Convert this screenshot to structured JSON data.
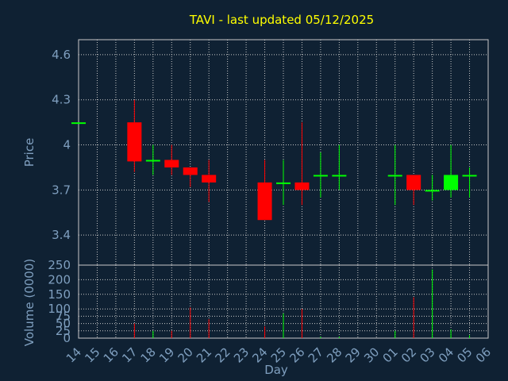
{
  "chart_data": {
    "title": "TAVI - last updated 05/12/2025",
    "type": "candlestick",
    "xlabel": "Day",
    "categories": [
      "14",
      "15",
      "16",
      "17",
      "18",
      "19",
      "20",
      "21",
      "22",
      "23",
      "24",
      "25",
      "26",
      "27",
      "28",
      "29",
      "30",
      "01",
      "02",
      "03",
      "04",
      "05",
      "06"
    ],
    "price": {
      "ylabel": "Price",
      "ylim": [
        3.2,
        4.7
      ],
      "ticks": [
        3.4,
        3.7,
        4,
        4.3,
        4.6
      ],
      "candles": [
        {
          "day": "14",
          "open": 4.15,
          "high": 4.15,
          "low": 4.15,
          "close": 4.15
        },
        {
          "day": "17",
          "open": 4.15,
          "high": 4.3,
          "low": 3.82,
          "close": 3.89
        },
        {
          "day": "18",
          "open": 3.89,
          "high": 4.0,
          "low": 3.8,
          "close": 3.9
        },
        {
          "day": "19",
          "open": 3.9,
          "high": 4.0,
          "low": 3.8,
          "close": 3.85
        },
        {
          "day": "20",
          "open": 3.85,
          "high": 3.85,
          "low": 3.72,
          "close": 3.8
        },
        {
          "day": "21",
          "open": 3.8,
          "high": 3.9,
          "low": 3.62,
          "close": 3.75
        },
        {
          "day": "24",
          "open": 3.75,
          "high": 3.9,
          "low": 3.5,
          "close": 3.5
        },
        {
          "day": "25",
          "open": 3.74,
          "high": 3.9,
          "low": 3.6,
          "close": 3.75
        },
        {
          "day": "26",
          "open": 3.75,
          "high": 4.15,
          "low": 3.6,
          "close": 3.7
        },
        {
          "day": "27",
          "open": 3.79,
          "high": 3.95,
          "low": 3.65,
          "close": 3.8
        },
        {
          "day": "28",
          "open": 3.79,
          "high": 4.0,
          "low": 3.7,
          "close": 3.8
        },
        {
          "day": "01",
          "open": 3.79,
          "high": 4.0,
          "low": 3.6,
          "close": 3.8
        },
        {
          "day": "02",
          "open": 3.8,
          "high": 3.8,
          "low": 3.6,
          "close": 3.7
        },
        {
          "day": "03",
          "open": 3.69,
          "high": 3.8,
          "low": 3.63,
          "close": 3.7
        },
        {
          "day": "04",
          "open": 3.7,
          "high": 4.0,
          "low": 3.65,
          "close": 3.8
        },
        {
          "day": "05",
          "open": 3.79,
          "high": 3.85,
          "low": 3.65,
          "close": 3.8
        }
      ]
    },
    "volume": {
      "ylabel": "Volume (0000)",
      "ylim": [
        0,
        250
      ],
      "ticks": [
        0,
        25,
        50,
        75,
        100,
        150,
        200,
        250
      ],
      "bars": [
        {
          "day": "17",
          "value": 50,
          "color": "red"
        },
        {
          "day": "18",
          "value": 25,
          "color": "green"
        },
        {
          "day": "19",
          "value": 25,
          "color": "red"
        },
        {
          "day": "20",
          "value": 105,
          "color": "red"
        },
        {
          "day": "21",
          "value": 65,
          "color": "red"
        },
        {
          "day": "24",
          "value": 40,
          "color": "red"
        },
        {
          "day": "25",
          "value": 85,
          "color": "green"
        },
        {
          "day": "26",
          "value": 100,
          "color": "red"
        },
        {
          "day": "27",
          "value": 5,
          "color": "green"
        },
        {
          "day": "28",
          "value": 5,
          "color": "green"
        },
        {
          "day": "01",
          "value": 25,
          "color": "green"
        },
        {
          "day": "02",
          "value": 140,
          "color": "red"
        },
        {
          "day": "03",
          "value": 235,
          "color": "green"
        },
        {
          "day": "04",
          "value": 30,
          "color": "green"
        },
        {
          "day": "05",
          "value": 10,
          "color": "green"
        }
      ]
    },
    "grid": true,
    "colors": {
      "background": "#0f2133",
      "grid": "#c8c8c8",
      "up": "#00ff00",
      "down": "#ff0000",
      "title": "#ffff00",
      "text": "#7f9fbf"
    }
  }
}
